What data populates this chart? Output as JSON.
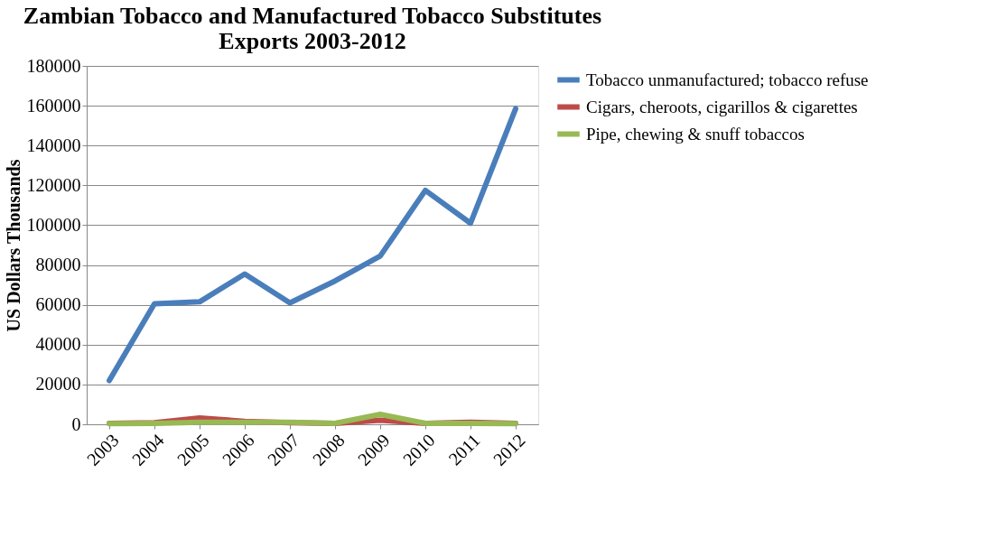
{
  "chart_data": {
    "type": "line",
    "title": [
      "Zambian Tobacco and Manufactured Tobacco Substitutes",
      "Exports 2003-2012"
    ],
    "ylabel": "US Dollars Thousands",
    "categories": [
      "2003",
      "2004",
      "2005",
      "2006",
      "2007",
      "2008",
      "2009",
      "2010",
      "2011",
      "2012"
    ],
    "series": [
      {
        "name": "Tobacco unmanufactured; tobacco refuse",
        "color": "#4a7ebb",
        "values": [
          22000,
          60500,
          61500,
          75500,
          61000,
          72000,
          84500,
          117500,
          101000,
          158500
        ]
      },
      {
        "name": "Cigars, cheroots, cigarillos & cigarettes",
        "color": "#be4b48",
        "values": [
          500,
          800,
          3200,
          1500,
          800,
          500,
          2000,
          500,
          1000,
          500
        ]
      },
      {
        "name": "Pipe, chewing & snuff tobaccos",
        "color": "#98b954",
        "values": [
          300,
          500,
          1000,
          1000,
          1000,
          500,
          5000,
          500,
          500,
          300
        ]
      }
    ],
    "ylim": [
      0,
      180000
    ],
    "yticks": [
      0,
      20000,
      40000,
      60000,
      80000,
      100000,
      120000,
      140000,
      160000,
      180000
    ],
    "grid": "y",
    "legend": "right",
    "marker": "none",
    "line_style": "solid"
  }
}
